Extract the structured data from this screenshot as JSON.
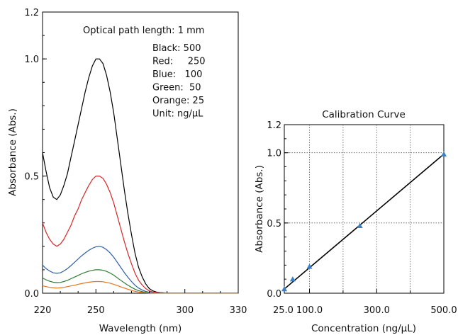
{
  "chart_data": [
    {
      "type": "line",
      "title": "",
      "xlabel": "Wavelength (nm)",
      "ylabel": "Absorbance (Abs.)",
      "xlim": [
        220,
        330
      ],
      "ylim": [
        0,
        1.2
      ],
      "x_ticks": [
        "220",
        "250",
        "300",
        "330"
      ],
      "y_ticks": [
        "0.0",
        "0.5",
        "1.0",
        "1.2"
      ],
      "grid": false,
      "annotation_title": "Optical path length: 1 mm",
      "annotation_lines": [
        "Black: 500",
        "Red:     250",
        "Blue:   100",
        "Green:  50",
        "Orange: 25",
        "Unit: ng/μL"
      ],
      "x": [
        220,
        222,
        224,
        226,
        228,
        230,
        232,
        234,
        236,
        238,
        240,
        242,
        244,
        246,
        248,
        250,
        252,
        254,
        256,
        258,
        260,
        262,
        264,
        266,
        268,
        270,
        272,
        274,
        276,
        278,
        280,
        282,
        284,
        286,
        288,
        290,
        292,
        294,
        296,
        298,
        300,
        302,
        304,
        306,
        308,
        310,
        312,
        314,
        316,
        318,
        320,
        322,
        324,
        326,
        328,
        330
      ],
      "series": [
        {
          "color": "#000000",
          "values": [
            0.6,
            0.52,
            0.45,
            0.41,
            0.4,
            0.42,
            0.46,
            0.51,
            0.58,
            0.65,
            0.72,
            0.79,
            0.86,
            0.92,
            0.97,
            1.0,
            1.0,
            0.98,
            0.93,
            0.86,
            0.77,
            0.66,
            0.55,
            0.44,
            0.34,
            0.25,
            0.17,
            0.11,
            0.07,
            0.04,
            0.02,
            0.01,
            0.005,
            0.003,
            0.002,
            0.001,
            0.001,
            0.001,
            0.001,
            0.001,
            0.001,
            0.001,
            0.001,
            0.001,
            0.001,
            0.001,
            0.001,
            0.001,
            0.001,
            0.001,
            0.001,
            0.001,
            0.001,
            0.001,
            0.001,
            0.001
          ]
        },
        {
          "color": "#d62728",
          "values": [
            0.3,
            0.26,
            0.23,
            0.21,
            0.2,
            0.21,
            0.23,
            0.26,
            0.29,
            0.33,
            0.36,
            0.4,
            0.43,
            0.46,
            0.485,
            0.5,
            0.5,
            0.49,
            0.465,
            0.43,
            0.385,
            0.33,
            0.275,
            0.22,
            0.17,
            0.125,
            0.085,
            0.055,
            0.035,
            0.02,
            0.01,
            0.005,
            0.003,
            0.002,
            0.001,
            0.001,
            0.001,
            0.001,
            0.001,
            0.001,
            0.001,
            0.001,
            0.001,
            0.001,
            0.001,
            0.001,
            0.001,
            0.001,
            0.001,
            0.001,
            0.001,
            0.001,
            0.001,
            0.001,
            0.001,
            0.001
          ]
        },
        {
          "color": "#2f5fa8",
          "values": [
            0.12,
            0.105,
            0.095,
            0.087,
            0.085,
            0.087,
            0.095,
            0.105,
            0.118,
            0.132,
            0.146,
            0.16,
            0.172,
            0.183,
            0.192,
            0.198,
            0.2,
            0.196,
            0.186,
            0.172,
            0.154,
            0.132,
            0.11,
            0.088,
            0.068,
            0.05,
            0.034,
            0.022,
            0.014,
            0.008,
            0.004,
            0.002,
            0.001,
            0.001,
            0.001,
            0.001,
            0.001,
            0.001,
            0.001,
            0.001,
            0.001,
            0.001,
            0.001,
            0.001,
            0.001,
            0.001,
            0.001,
            0.001,
            0.001,
            0.001,
            0.001,
            0.001,
            0.001,
            0.001,
            0.001,
            0.001
          ]
        },
        {
          "color": "#2e7d32",
          "values": [
            0.065,
            0.057,
            0.051,
            0.047,
            0.045,
            0.046,
            0.05,
            0.055,
            0.062,
            0.069,
            0.076,
            0.083,
            0.089,
            0.094,
            0.098,
            0.1,
            0.1,
            0.098,
            0.093,
            0.086,
            0.077,
            0.066,
            0.055,
            0.044,
            0.034,
            0.025,
            0.017,
            0.011,
            0.007,
            0.004,
            0.002,
            0.001,
            0.001,
            0.001,
            0.001,
            0.001,
            0.001,
            0.001,
            0.001,
            0.001,
            0.001,
            0.001,
            0.001,
            0.001,
            0.001,
            0.001,
            0.001,
            0.001,
            0.001,
            0.001,
            0.001,
            0.001,
            0.001,
            0.001,
            0.001,
            0.001
          ]
        },
        {
          "color": "#e8731a",
          "values": [
            0.032,
            0.028,
            0.025,
            0.023,
            0.022,
            0.023,
            0.025,
            0.028,
            0.031,
            0.034,
            0.038,
            0.041,
            0.044,
            0.047,
            0.049,
            0.05,
            0.05,
            0.049,
            0.046,
            0.043,
            0.038,
            0.033,
            0.027,
            0.022,
            0.017,
            0.012,
            0.008,
            0.005,
            0.003,
            0.002,
            0.001,
            0.001,
            0.001,
            0.001,
            0.001,
            0.001,
            0.001,
            0.001,
            0.001,
            0.001,
            0.001,
            0.001,
            0.001,
            0.001,
            0.001,
            0.001,
            0.001,
            0.001,
            0.001,
            0.001,
            0.001,
            0.001,
            0.001,
            0.001,
            0.001,
            0.001
          ]
        }
      ]
    },
    {
      "type": "scatter",
      "title": "Calibration Curve",
      "xlabel": "Concentration (ng/μL)",
      "ylabel": "Absorbance (Abs.)",
      "xlim": [
        25,
        500
      ],
      "ylim": [
        0,
        1.2
      ],
      "x_ticks": [
        "25.0",
        "100.0",
        "300.0",
        "500.0"
      ],
      "y_ticks": [
        "0.0",
        "0.5",
        "1.0",
        "1.2"
      ],
      "grid": true,
      "marker_color": "#3b7fc4",
      "points": {
        "x": [
          25,
          50,
          100,
          250,
          500
        ],
        "y": [
          0.03,
          0.1,
          0.19,
          0.48,
          0.99
        ]
      },
      "fit_line": {
        "x": [
          25,
          500
        ],
        "y": [
          0.03,
          0.99
        ],
        "color": "#000000"
      }
    }
  ]
}
